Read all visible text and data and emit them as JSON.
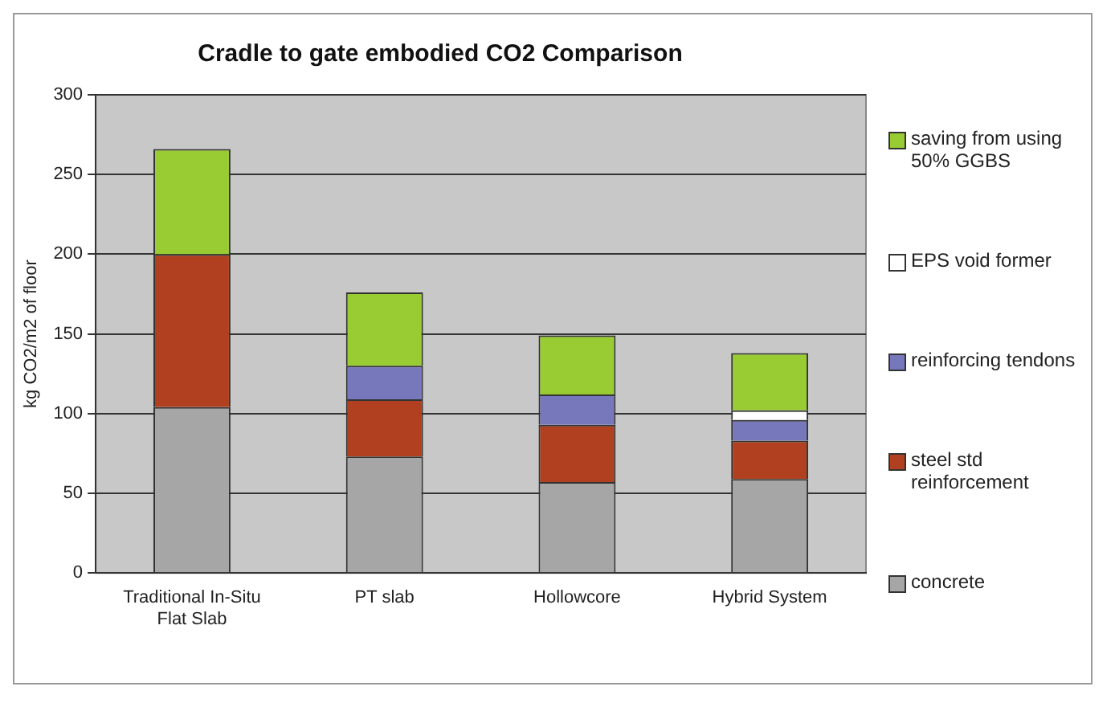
{
  "chart_data": {
    "type": "bar",
    "title": "Cradle to gate embodied CO2 Comparison",
    "ylabel": "kg CO2/m2 of floor",
    "categories": [
      "Traditional In-Situ Flat Slab",
      "PT slab",
      "Hollowcore",
      "Hybrid System"
    ],
    "stacked": true,
    "series": [
      {
        "name": "concrete",
        "color": "#a6a6a6",
        "values": [
          104,
          73,
          57,
          59
        ]
      },
      {
        "name": "steel std reinforcement",
        "color": "#b04020",
        "values": [
          96,
          36,
          36,
          24
        ]
      },
      {
        "name": "reinforcing tendons",
        "color": "#7777bb",
        "values": [
          0,
          21,
          19,
          13
        ]
      },
      {
        "name": "EPS void former",
        "color": "#ffffff",
        "values": [
          0,
          0,
          0,
          6
        ]
      },
      {
        "name": "saving from using 50% GGBS",
        "color": "#99cc33",
        "values": [
          66,
          46,
          37,
          36
        ]
      }
    ],
    "ylim": [
      0,
      300
    ],
    "yticks": [
      0,
      50,
      100,
      150,
      200,
      250,
      300
    ],
    "grid": "y",
    "legend": "right"
  }
}
